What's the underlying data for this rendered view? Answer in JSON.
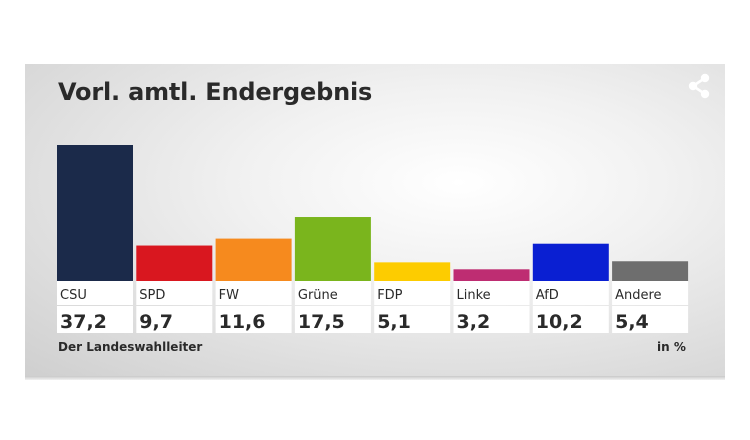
{
  "chart_data": {
    "type": "bar",
    "title": "Vorl. amtl. Endergebnis",
    "categories": [
      "CSU",
      "SPD",
      "FW",
      "Grüne",
      "FDP",
      "Linke",
      "AfD",
      "Andere"
    ],
    "values": [
      37.2,
      9.7,
      11.6,
      17.5,
      5.1,
      3.2,
      10.2,
      5.4
    ],
    "value_labels": [
      "37,2",
      "9,7",
      "11,6",
      "17,5",
      "5,1",
      "3,2",
      "10,2",
      "5,4"
    ],
    "colors": [
      "#1b2a4a",
      "#d9171f",
      "#f68a1e",
      "#7ab51d",
      "#fdcc00",
      "#be2d72",
      "#0a1fd2",
      "#6e6e6e"
    ],
    "unit": "in %",
    "source": "Der Landeswahlleiter",
    "ylim": [
      0,
      37.2
    ],
    "grid": false,
    "legend": "none"
  },
  "share": {
    "icon": "share-icon"
  }
}
